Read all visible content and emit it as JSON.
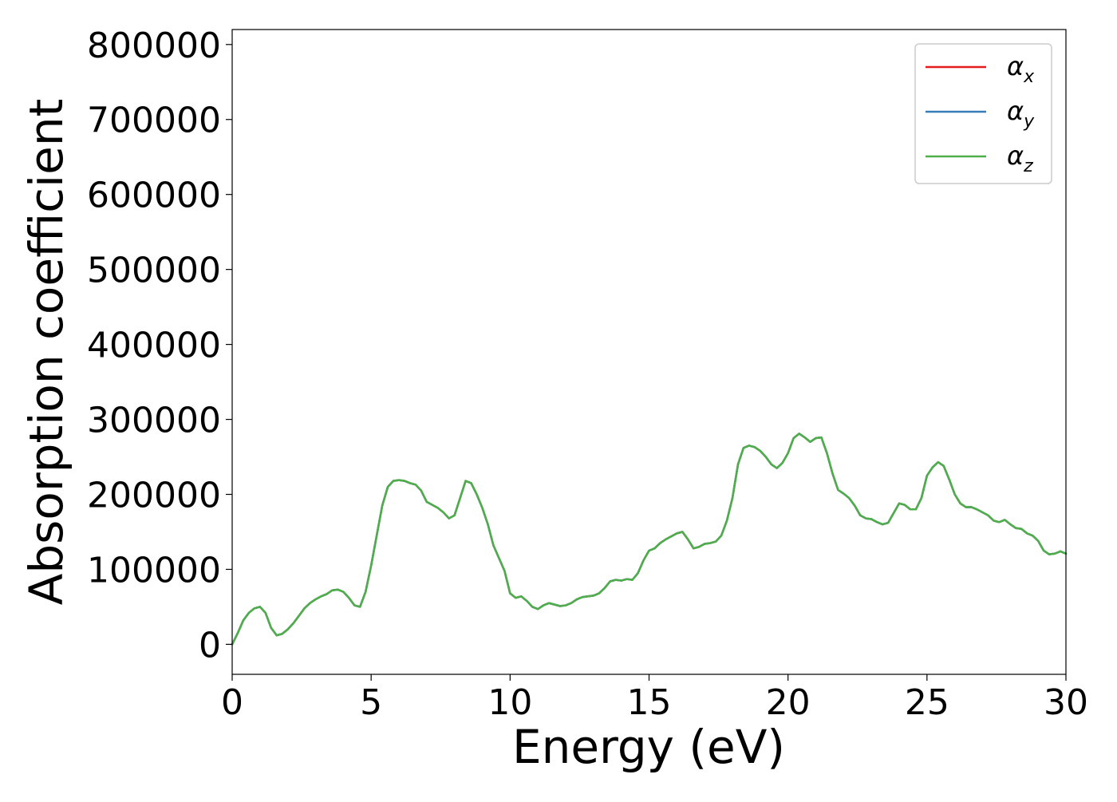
{
  "chart_data": {
    "type": "line",
    "title": "",
    "xlabel": "Energy (eV)",
    "ylabel": "Absorption coefficient",
    "xlim": [
      0,
      30
    ],
    "ylim": [
      -40000,
      820000
    ],
    "xticks": [
      0,
      5,
      10,
      15,
      20,
      25,
      30
    ],
    "yticks": [
      0,
      100000,
      200000,
      300000,
      400000,
      500000,
      600000,
      700000,
      800000
    ],
    "grid": false,
    "legend_position": "top-right",
    "x": [
      0,
      0.2,
      0.4,
      0.6,
      0.8,
      1.0,
      1.2,
      1.4,
      1.6,
      1.8,
      2.0,
      2.2,
      2.4,
      2.6,
      2.8,
      3.0,
      3.2,
      3.4,
      3.6,
      3.8,
      4.0,
      4.2,
      4.4,
      4.6,
      4.8,
      5.0,
      5.2,
      5.4,
      5.6,
      5.8,
      6.0,
      6.2,
      6.4,
      6.6,
      6.8,
      7.0,
      7.2,
      7.4,
      7.6,
      7.8,
      8.0,
      8.2,
      8.4,
      8.6,
      8.8,
      9.0,
      9.2,
      9.4,
      9.6,
      9.8,
      10.0,
      10.2,
      10.4,
      10.6,
      10.8,
      11.0,
      11.2,
      11.4,
      11.6,
      11.8,
      12.0,
      12.2,
      12.4,
      12.6,
      12.8,
      13.0,
      13.2,
      13.4,
      13.6,
      13.8,
      14.0,
      14.2,
      14.4,
      14.6,
      14.8,
      15.0,
      15.2,
      15.4,
      15.6,
      15.8,
      16.0,
      16.2,
      16.4,
      16.6,
      16.8,
      17.0,
      17.2,
      17.4,
      17.6,
      17.8,
      18.0,
      18.2,
      18.4,
      18.6,
      18.8,
      19.0,
      19.2,
      19.4,
      19.6,
      19.8,
      20.0,
      20.2,
      20.4,
      20.6,
      20.8,
      21.0,
      21.2,
      21.4,
      21.6,
      21.8,
      22.0,
      22.2,
      22.4,
      22.6,
      22.8,
      23.0,
      23.2,
      23.4,
      23.6,
      23.8,
      24.0,
      24.2,
      24.4,
      24.6,
      24.8,
      25.0,
      25.2,
      25.4,
      25.6,
      25.8,
      26.0,
      26.2,
      26.4,
      26.6,
      26.8,
      27.0,
      27.2,
      27.4,
      27.6,
      27.8,
      28.0,
      28.2,
      28.4,
      28.6,
      28.8,
      29.0,
      29.2,
      29.4,
      29.6,
      29.8,
      30.0
    ],
    "series": [
      {
        "name": "αx",
        "color": "#e41a1c",
        "values": [
          0,
          15000,
          32000,
          42000,
          48000,
          50000,
          42000,
          22000,
          12000,
          14000,
          20000,
          28000,
          38000,
          48000,
          55000,
          60000,
          64000,
          67000,
          72000,
          73000,
          70000,
          62000,
          52000,
          50000,
          70000,
          105000,
          145000,
          185000,
          210000,
          218000,
          219000,
          218000,
          215000,
          213000,
          205000,
          190000,
          186000,
          182000,
          176000,
          168000,
          172000,
          195000,
          218000,
          215000,
          200000,
          182000,
          160000,
          132000,
          115000,
          98000,
          68000,
          62000,
          64000,
          58000,
          50000,
          47000,
          52000,
          55000,
          53000,
          51000,
          52000,
          55000,
          60000,
          63000,
          64000,
          65000,
          68000,
          75000,
          84000,
          86000,
          85000,
          87000,
          86000,
          95000,
          112000,
          125000,
          128000,
          135000,
          140000,
          144000,
          148000,
          150000,
          140000,
          128000,
          130000,
          134000,
          135000,
          137000,
          145000,
          165000,
          195000,
          240000,
          262000,
          265000,
          263000,
          258000,
          250000,
          240000,
          235000,
          242000,
          255000,
          275000,
          281000,
          276000,
          270000,
          275000,
          276000,
          255000,
          228000,
          206000,
          201000,
          195000,
          185000,
          172000,
          168000,
          167000,
          163000,
          160000,
          162000,
          175000,
          188000,
          186000,
          180000,
          180000,
          195000,
          225000,
          236000,
          243000,
          238000,
          220000,
          200000,
          188000,
          183000,
          183000,
          180000,
          176000,
          172000,
          165000,
          163000,
          166000,
          160000,
          155000,
          154000,
          148000,
          145000,
          138000,
          125000,
          120000,
          121000,
          124000,
          121000
        ]
      },
      {
        "name": "αy",
        "color": "#377eb8",
        "values": [
          0,
          15000,
          32000,
          42000,
          48000,
          50000,
          42000,
          22000,
          12000,
          14000,
          20000,
          28000,
          38000,
          48000,
          55000,
          60000,
          64000,
          67000,
          72000,
          73000,
          70000,
          62000,
          52000,
          50000,
          70000,
          105000,
          145000,
          185000,
          210000,
          218000,
          219000,
          218000,
          215000,
          213000,
          205000,
          190000,
          186000,
          182000,
          176000,
          168000,
          172000,
          195000,
          218000,
          215000,
          200000,
          182000,
          160000,
          132000,
          115000,
          98000,
          68000,
          62000,
          64000,
          58000,
          50000,
          47000,
          52000,
          55000,
          53000,
          51000,
          52000,
          55000,
          60000,
          63000,
          64000,
          65000,
          68000,
          75000,
          84000,
          86000,
          85000,
          87000,
          86000,
          95000,
          112000,
          125000,
          128000,
          135000,
          140000,
          144000,
          148000,
          150000,
          140000,
          128000,
          130000,
          134000,
          135000,
          137000,
          145000,
          165000,
          195000,
          240000,
          262000,
          265000,
          263000,
          258000,
          250000,
          240000,
          235000,
          242000,
          255000,
          275000,
          281000,
          276000,
          270000,
          275000,
          276000,
          255000,
          228000,
          206000,
          201000,
          195000,
          185000,
          172000,
          168000,
          167000,
          163000,
          160000,
          162000,
          175000,
          188000,
          186000,
          180000,
          180000,
          195000,
          225000,
          236000,
          243000,
          238000,
          220000,
          200000,
          188000,
          183000,
          183000,
          180000,
          176000,
          172000,
          165000,
          163000,
          166000,
          160000,
          155000,
          154000,
          148000,
          145000,
          138000,
          125000,
          120000,
          121000,
          124000,
          121000
        ]
      },
      {
        "name": "αz",
        "color": "#4daf4a",
        "values": [
          0,
          15000,
          32000,
          42000,
          48000,
          50000,
          42000,
          22000,
          12000,
          14000,
          20000,
          28000,
          38000,
          48000,
          55000,
          60000,
          64000,
          67000,
          72000,
          73000,
          70000,
          62000,
          52000,
          50000,
          70000,
          105000,
          145000,
          185000,
          210000,
          218000,
          219000,
          218000,
          215000,
          213000,
          205000,
          190000,
          186000,
          182000,
          176000,
          168000,
          172000,
          195000,
          218000,
          215000,
          200000,
          182000,
          160000,
          132000,
          115000,
          98000,
          68000,
          62000,
          64000,
          58000,
          50000,
          47000,
          52000,
          55000,
          53000,
          51000,
          52000,
          55000,
          60000,
          63000,
          64000,
          65000,
          68000,
          75000,
          84000,
          86000,
          85000,
          87000,
          86000,
          95000,
          112000,
          125000,
          128000,
          135000,
          140000,
          144000,
          148000,
          150000,
          140000,
          128000,
          130000,
          134000,
          135000,
          137000,
          145000,
          165000,
          195000,
          240000,
          262000,
          265000,
          263000,
          258000,
          250000,
          240000,
          235000,
          242000,
          255000,
          275000,
          281000,
          276000,
          270000,
          275000,
          276000,
          255000,
          228000,
          206000,
          201000,
          195000,
          185000,
          172000,
          168000,
          167000,
          163000,
          160000,
          162000,
          175000,
          188000,
          186000,
          180000,
          180000,
          195000,
          225000,
          236000,
          243000,
          238000,
          220000,
          200000,
          188000,
          183000,
          183000,
          180000,
          176000,
          172000,
          165000,
          163000,
          166000,
          160000,
          155000,
          154000,
          148000,
          145000,
          138000,
          125000,
          120000,
          121000,
          124000,
          121000
        ]
      }
    ],
    "legend": [
      {
        "symbol": "α",
        "sub": "x",
        "color": "#e41a1c"
      },
      {
        "symbol": "α",
        "sub": "y",
        "color": "#377eb8"
      },
      {
        "symbol": "α",
        "sub": "z",
        "color": "#4daf4a"
      }
    ]
  }
}
